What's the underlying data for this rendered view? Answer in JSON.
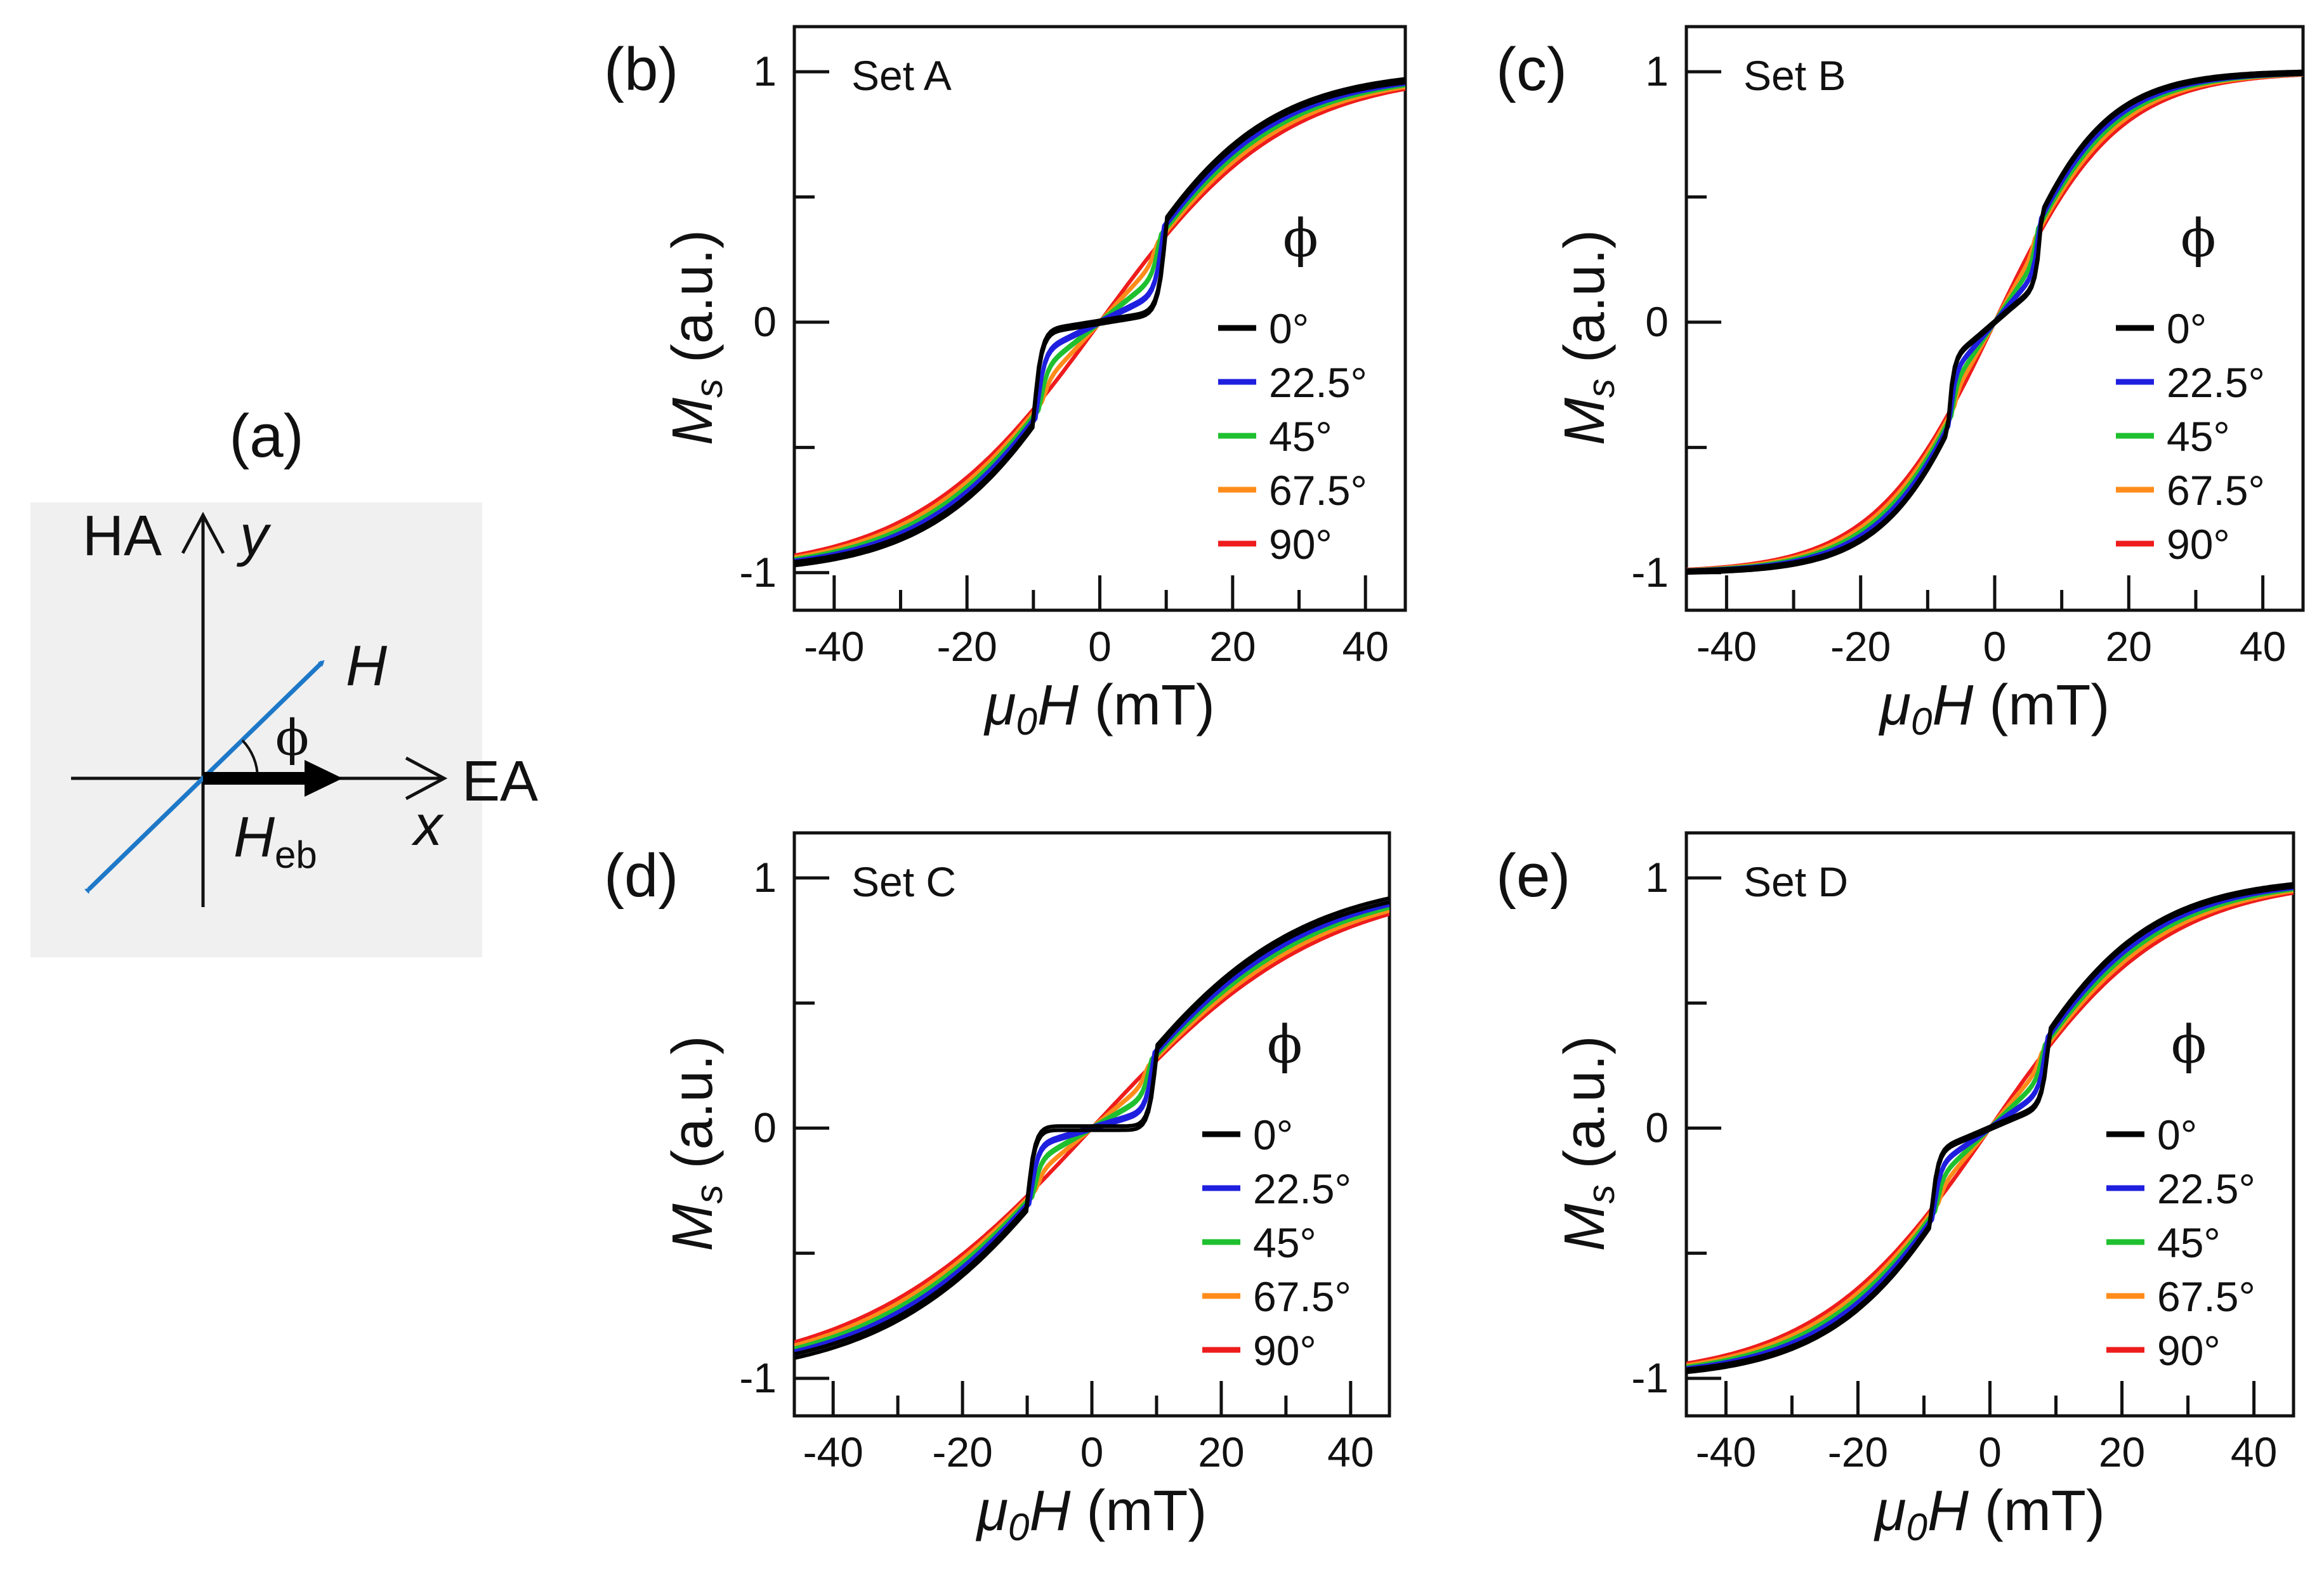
{
  "legend": {
    "phi_symbol": "ϕ",
    "entries": [
      {
        "label": "0°",
        "color": "#000000"
      },
      {
        "label": "22.5°",
        "color": "#1f1fe0"
      },
      {
        "label": "45°",
        "color": "#1fc02f"
      },
      {
        "label": "67.5°",
        "color": "#ff8c1a"
      },
      {
        "label": "90°",
        "color": "#ee1c1c"
      }
    ]
  },
  "diagram": {
    "panel_label": "(a)",
    "ha_label": "HA",
    "ea_label": "EA",
    "y_label": "y",
    "x_label": "x",
    "h_label": "H",
    "phi_label": "ϕ",
    "heb_main": "H",
    "heb_sub": "eb",
    "h_color": "#1e78c8",
    "bg_color": "#f0f0f0"
  },
  "chart_data": [
    {
      "type": "line",
      "panel_label": "(b)",
      "title": "Set A",
      "xlabel_main": "μ",
      "xlabel_sub": "0",
      "xlabel_var": "H",
      "xlabel_unit": " (mT)",
      "ylabel_main": "M",
      "ylabel_sub": "s",
      "ylabel_unit": " (a.u.)",
      "xlim": [
        -46,
        46
      ],
      "ylim": [
        -1.15,
        1.18
      ],
      "xticks": [
        -40,
        -20,
        0,
        20,
        40
      ],
      "yticks": [
        -1,
        0,
        1
      ],
      "params": {
        "ex": 8.5,
        "h0": 23,
        "fl": 0.9,
        "hc": 10
      },
      "series": [
        {
          "name": "0°",
          "x": [
            -46,
            -11,
            -10,
            0,
            10,
            11,
            46
          ],
          "y": [
            -0.97,
            -0.38,
            -0.02,
            0.0,
            0.02,
            0.38,
            0.99
          ]
        },
        {
          "name": "22.5°",
          "x": [
            -46,
            -10,
            0,
            10,
            46
          ],
          "y": [
            -0.97,
            -0.35,
            0.0,
            0.35,
            0.99
          ]
        },
        {
          "name": "45°",
          "x": [
            -46,
            -10,
            0,
            10,
            46
          ],
          "y": [
            -0.97,
            -0.33,
            0.0,
            0.33,
            0.99
          ]
        },
        {
          "name": "67.5°",
          "x": [
            -46,
            -10,
            0,
            10,
            46
          ],
          "y": [
            -0.97,
            -0.3,
            0.0,
            0.3,
            0.98
          ]
        },
        {
          "name": "90°",
          "x": [
            -46,
            -10,
            0,
            10,
            46
          ],
          "y": [
            -0.97,
            -0.3,
            0.0,
            0.3,
            0.98
          ]
        }
      ]
    },
    {
      "type": "line",
      "panel_label": "(c)",
      "title": "Set B",
      "xlabel_main": "μ",
      "xlabel_sub": "0",
      "xlabel_var": "H",
      "xlabel_unit": " (mT)",
      "ylabel_main": "M",
      "ylabel_sub": "s",
      "ylabel_unit": " (a.u.)",
      "xlim": [
        -46,
        46
      ],
      "ylim": [
        -1.15,
        1.18
      ],
      "xticks": [
        -40,
        -20,
        0,
        20,
        40
      ],
      "yticks": [
        -1,
        0,
        1
      ],
      "params": {
        "ex": 5,
        "h0": 15,
        "fl": 0.65,
        "hc": 7
      },
      "series": [
        {
          "name": "0°",
          "x": [
            -46,
            -8,
            -7,
            0,
            7,
            8,
            46
          ],
          "y": [
            -0.99,
            -0.35,
            -0.06,
            0.0,
            0.06,
            0.35,
            1.0
          ]
        },
        {
          "name": "22.5°",
          "x": [
            -46,
            -7,
            0,
            7,
            46
          ],
          "y": [
            -0.99,
            -0.32,
            0.0,
            0.32,
            0.99
          ]
        },
        {
          "name": "45°",
          "x": [
            -46,
            -7,
            0,
            7,
            46
          ],
          "y": [
            -0.97,
            -0.3,
            0.0,
            0.3,
            0.97
          ]
        },
        {
          "name": "67.5°",
          "x": [
            -46,
            -7,
            0,
            7,
            46
          ],
          "y": [
            -0.94,
            -0.27,
            0.0,
            0.27,
            0.94
          ]
        },
        {
          "name": "90°",
          "x": [
            -46,
            -7,
            0,
            7,
            46
          ],
          "y": [
            -0.93,
            -0.27,
            0.0,
            0.27,
            0.93
          ]
        }
      ]
    },
    {
      "type": "line",
      "panel_label": "(d)",
      "title": "Set C",
      "xlabel_main": "μ",
      "xlabel_sub": "0",
      "xlabel_var": "H",
      "xlabel_unit": " (mT)",
      "ylabel_main": "M",
      "ylabel_sub": "s",
      "ylabel_unit": " (a.u.)",
      "xlim": [
        -46,
        46
      ],
      "ylim": [
        -1.15,
        1.18
      ],
      "xticks": [
        -40,
        -20,
        0,
        20,
        40
      ],
      "yticks": [
        -1,
        0,
        1
      ],
      "params": {
        "ex": 9.5,
        "h0": 30,
        "fl": 1.0,
        "hc": 10
      },
      "series": [
        {
          "name": "0°",
          "x": [
            -46,
            -11,
            -10,
            0,
            10,
            11,
            46
          ],
          "y": [
            -0.82,
            -0.3,
            0.0,
            0.0,
            0.0,
            0.3,
            0.82
          ]
        },
        {
          "name": "22.5°",
          "x": [
            -46,
            -10,
            0,
            10,
            46
          ],
          "y": [
            -0.81,
            -0.28,
            0.0,
            0.28,
            0.81
          ]
        },
        {
          "name": "45°",
          "x": [
            -46,
            -10,
            0,
            10,
            46
          ],
          "y": [
            -0.8,
            -0.26,
            0.0,
            0.26,
            0.8
          ]
        },
        {
          "name": "67.5°",
          "x": [
            -46,
            -10,
            0,
            10,
            46
          ],
          "y": [
            -0.78,
            -0.24,
            0.0,
            0.24,
            0.78
          ]
        },
        {
          "name": "90°",
          "x": [
            -46,
            -10,
            0,
            10,
            46
          ],
          "y": [
            -0.77,
            -0.24,
            0.0,
            0.24,
            0.77
          ]
        }
      ]
    },
    {
      "type": "line",
      "panel_label": "(e)",
      "title": "Set D",
      "xlabel_main": "μ",
      "xlabel_sub": "0",
      "xlabel_var": "H",
      "xlabel_unit": " (mT)",
      "ylabel_main": "M",
      "ylabel_sub": "s",
      "ylabel_unit": " (a.u.)",
      "xlim": [
        -46,
        46
      ],
      "ylim": [
        -1.15,
        1.18
      ],
      "xticks": [
        -40,
        -20,
        0,
        20,
        40
      ],
      "yticks": [
        -1,
        0,
        1
      ],
      "params": {
        "ex": 7,
        "h0": 22,
        "fl": 0.75,
        "hc": 9
      },
      "series": [
        {
          "name": "0°",
          "x": [
            -46,
            -9,
            -8,
            0,
            8,
            9,
            46
          ],
          "y": [
            -0.89,
            -0.3,
            0.02,
            0.04,
            0.06,
            0.35,
            0.92
          ]
        },
        {
          "name": "22.5°",
          "x": [
            -46,
            -9,
            0,
            9,
            46
          ],
          "y": [
            -0.88,
            -0.3,
            0.03,
            0.32,
            0.91
          ]
        },
        {
          "name": "45°",
          "x": [
            -46,
            -9,
            0,
            9,
            46
          ],
          "y": [
            -0.87,
            -0.28,
            0.0,
            0.3,
            0.9
          ]
        },
        {
          "name": "67.5°",
          "x": [
            -46,
            -9,
            0,
            9,
            46
          ],
          "y": [
            -0.86,
            -0.27,
            0.0,
            0.28,
            0.89
          ]
        },
        {
          "name": "90°",
          "x": [
            -46,
            -9,
            0,
            9,
            46
          ],
          "y": [
            -0.86,
            -0.26,
            0.0,
            0.27,
            0.88
          ]
        }
      ]
    }
  ]
}
